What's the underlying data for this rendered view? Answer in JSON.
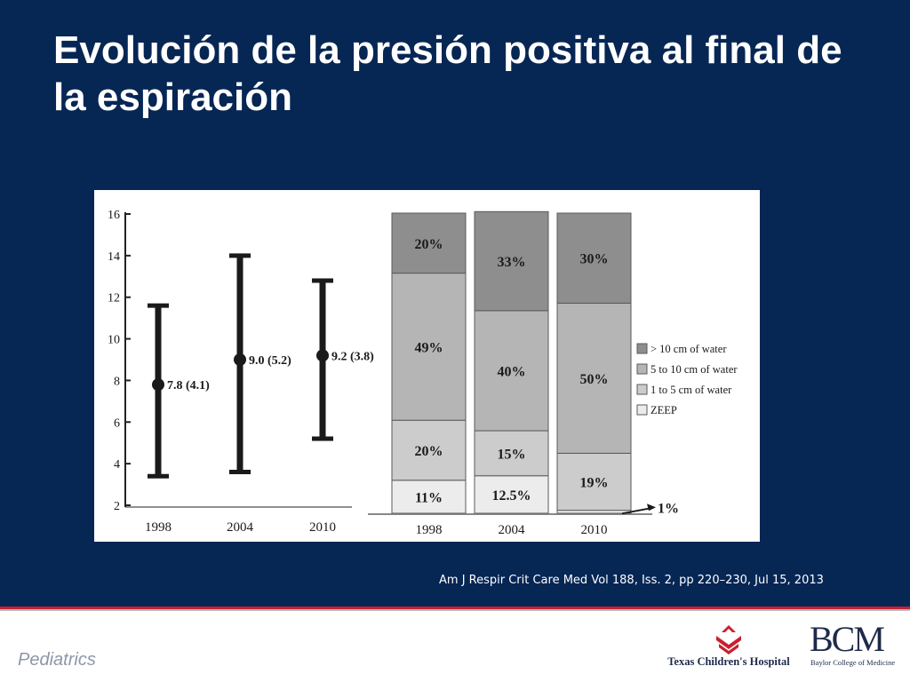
{
  "slide": {
    "title": "Evolución de la presión positiva al final de la espiración",
    "citation": "Am J Respir Crit Care Med Vol 188, Iss. 2, pp 220–230, Jul 15, 2013",
    "footer_label": "Pediatrics",
    "logos": {
      "tch": "Texas Children's Hospital",
      "bcm_mark": "BCM",
      "bcm_text": "Baylor College of Medicine"
    },
    "colors": {
      "background": "#062654",
      "accent_line": "#c8202f"
    }
  },
  "chart_data": [
    {
      "type": "scatter",
      "description_kind": "mean with error bars",
      "categories": [
        "1998",
        "2004",
        "2010"
      ],
      "mean": [
        7.8,
        9.0,
        9.2
      ],
      "sd": [
        4.1,
        5.2,
        3.8
      ],
      "whisker_low": [
        3.4,
        3.6,
        5.2
      ],
      "whisker_high": [
        11.6,
        14.0,
        12.8
      ],
      "point_labels": [
        "7.8 (4.1)",
        "9.0 (5.2)",
        "9.2 (3.8)"
      ],
      "y_ticks": [
        "2",
        "4",
        "6",
        "8",
        "10",
        "12",
        "14",
        "16"
      ],
      "ylim": [
        2,
        16
      ],
      "grid": false
    },
    {
      "type": "bar",
      "stacked": true,
      "percent": true,
      "categories": [
        "1998",
        "2004",
        "2010"
      ],
      "series": [
        {
          "name": "ZEEP",
          "values": [
            11,
            12.5,
            1
          ],
          "labels": [
            "11%",
            "12.5%",
            "1%"
          ],
          "color": "#ececec"
        },
        {
          "name": "1 to 5 cm of water",
          "values": [
            20,
            15,
            19
          ],
          "labels": [
            "20%",
            "15%",
            "19%"
          ],
          "color": "#cccccc"
        },
        {
          "name": "5 to 10 cm of water",
          "values": [
            49,
            40,
            50
          ],
          "labels": [
            "49%",
            "40%",
            "50%"
          ],
          "color": "#b5b5b5"
        },
        {
          "name": "> 10 cm of water",
          "values": [
            20,
            33,
            30
          ],
          "labels": [
            "20%",
            "33%",
            "30%"
          ],
          "color": "#8e8e8e"
        }
      ],
      "legend_position": "right",
      "grid": false
    }
  ]
}
